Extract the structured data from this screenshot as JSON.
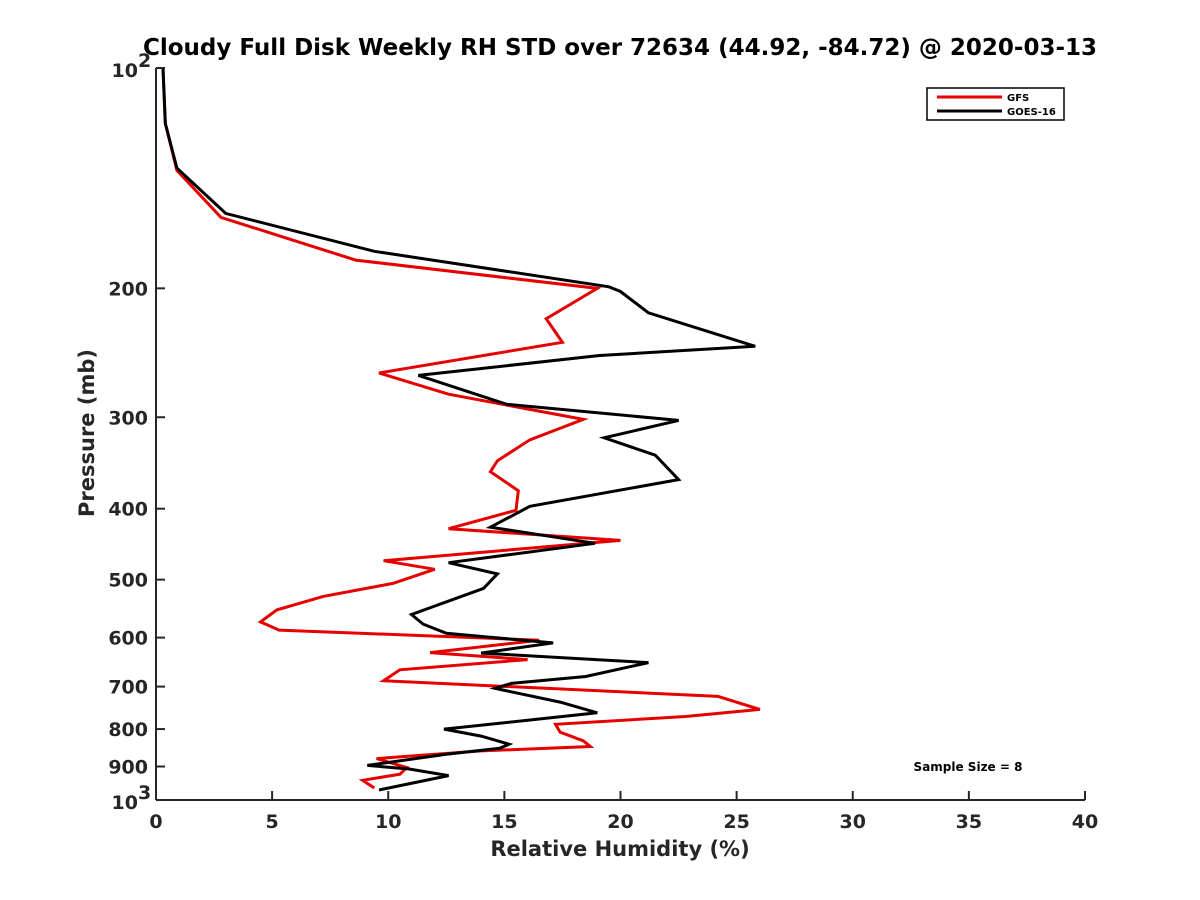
{
  "chart_data": {
    "type": "line",
    "title": "Cloudy Full Disk Weekly RH STD over 72634 (44.92, -84.72) @ 2020-03-13",
    "xlabel": "Relative Humidity (%)",
    "ylabel": "Pressure (mb)",
    "xlim": [
      0,
      40
    ],
    "ylim": [
      100,
      1000
    ],
    "y_scale": "log",
    "y_reversed": true,
    "x_ticks": [
      "0",
      "5",
      "10",
      "15",
      "20",
      "25",
      "30",
      "35",
      "40"
    ],
    "y_ticks": [
      {
        "value": 100,
        "base": "10",
        "exp": "2"
      },
      {
        "value": 200,
        "label": "200"
      },
      {
        "value": 300,
        "label": "300"
      },
      {
        "value": 400,
        "label": "400"
      },
      {
        "value": 500,
        "label": "500"
      },
      {
        "value": 600,
        "label": "600"
      },
      {
        "value": 700,
        "label": "700"
      },
      {
        "value": 800,
        "label": "800"
      },
      {
        "value": 900,
        "label": "900"
      },
      {
        "value": 1000,
        "base": "10",
        "exp": "3"
      }
    ],
    "grid": false,
    "legend_position": "top-right",
    "series": [
      {
        "name": "GFS",
        "color": "#e60000",
        "points": [
          [
            0.3,
            100
          ],
          [
            0.4,
            119
          ],
          [
            0.9,
            138
          ],
          [
            2.8,
            160
          ],
          [
            8.6,
            183
          ],
          [
            19.0,
            200
          ],
          [
            16.8,
            220
          ],
          [
            17.5,
            237
          ],
          [
            9.6,
            261
          ],
          [
            12.6,
            279
          ],
          [
            18.4,
            302
          ],
          [
            16.1,
            322
          ],
          [
            14.7,
            344
          ],
          [
            14.4,
            356
          ],
          [
            15.6,
            378
          ],
          [
            15.5,
            402
          ],
          [
            12.6,
            426
          ],
          [
            20.0,
            442
          ],
          [
            9.8,
            471
          ],
          [
            12.0,
            484
          ],
          [
            10.2,
            506
          ],
          [
            7.2,
            527
          ],
          [
            5.2,
            550
          ],
          [
            4.5,
            571
          ],
          [
            5.3,
            586
          ],
          [
            16.5,
            605
          ],
          [
            11.8,
            629
          ],
          [
            16.0,
            643
          ],
          [
            10.5,
            664
          ],
          [
            9.8,
            687
          ],
          [
            24.2,
            722
          ],
          [
            26.0,
            752
          ],
          [
            22.8,
            769
          ],
          [
            17.2,
            788
          ],
          [
            17.4,
            808
          ],
          [
            18.4,
            830
          ],
          [
            18.7,
            845
          ],
          [
            14.0,
            857
          ],
          [
            9.5,
            878
          ],
          [
            10.8,
            903
          ],
          [
            10.5,
            922
          ],
          [
            8.9,
            940
          ],
          [
            9.4,
            963
          ]
        ]
      },
      {
        "name": "GOES-16",
        "color": "#000000",
        "points": [
          [
            0.3,
            100
          ],
          [
            0.4,
            119
          ],
          [
            0.9,
            137
          ],
          [
            3.0,
            158
          ],
          [
            9.4,
            178
          ],
          [
            19.5,
            199
          ],
          [
            20.0,
            202
          ],
          [
            21.2,
            216
          ],
          [
            25.8,
            240
          ],
          [
            19.1,
            247
          ],
          [
            11.3,
            263
          ],
          [
            15.1,
            288
          ],
          [
            22.5,
            303
          ],
          [
            19.3,
            320
          ],
          [
            21.5,
            338
          ],
          [
            22.5,
            365
          ],
          [
            16.1,
            397
          ],
          [
            14.4,
            424
          ],
          [
            18.9,
            446
          ],
          [
            12.6,
            474
          ],
          [
            14.7,
            491
          ],
          [
            14.1,
            514
          ],
          [
            11.0,
            558
          ],
          [
            11.5,
            575
          ],
          [
            12.5,
            592
          ],
          [
            17.1,
            610
          ],
          [
            14.0,
            630
          ],
          [
            21.2,
            649
          ],
          [
            18.5,
            678
          ],
          [
            15.3,
            693
          ],
          [
            14.6,
            704
          ],
          [
            17.4,
            735
          ],
          [
            19.0,
            760
          ],
          [
            17.2,
            771
          ],
          [
            12.4,
            800
          ],
          [
            14.0,
            818
          ],
          [
            15.2,
            839
          ],
          [
            14.8,
            850
          ],
          [
            12.5,
            866
          ],
          [
            9.1,
            897
          ],
          [
            10.9,
            907
          ],
          [
            12.6,
            926
          ],
          [
            9.6,
            969
          ]
        ]
      }
    ],
    "annotations": [
      "Sample Size = 8"
    ]
  }
}
